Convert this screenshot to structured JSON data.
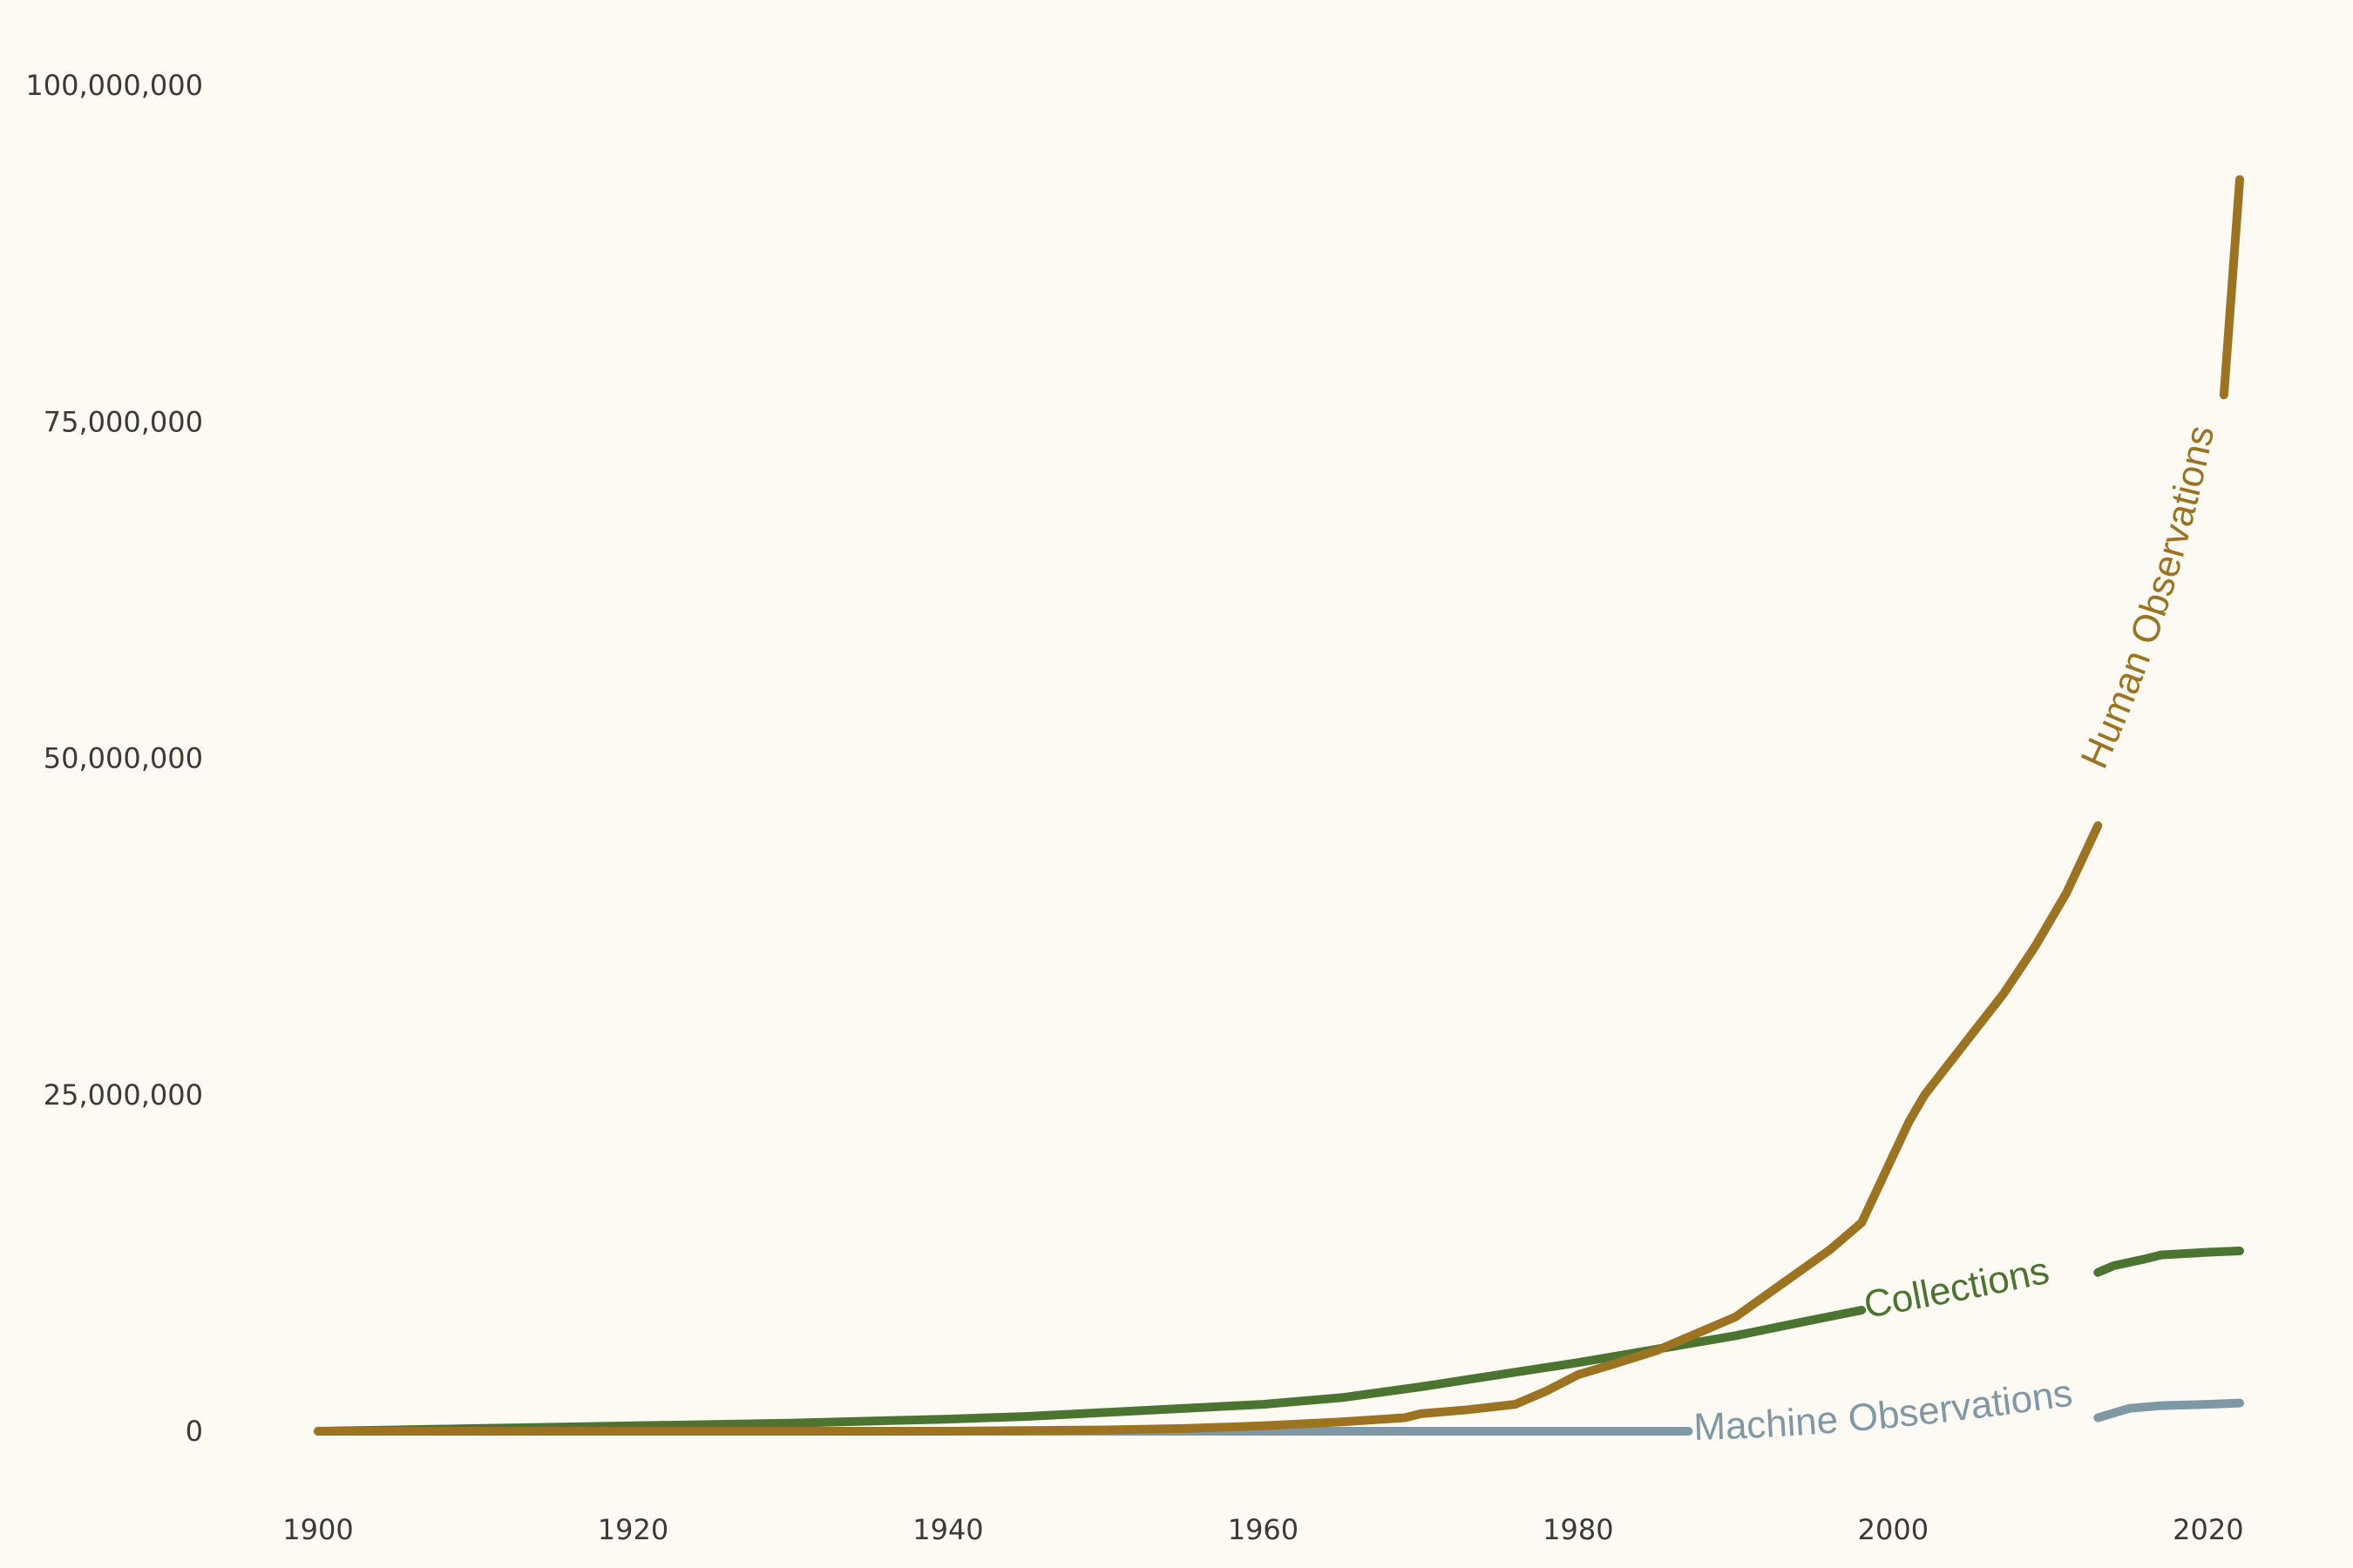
{
  "chart_data": {
    "type": "line",
    "title": "",
    "xlabel": "",
    "ylabel": "",
    "xlim": [
      1900,
      2022
    ],
    "ylim": [
      0,
      100000000
    ],
    "grid": false,
    "legend": "none (direct labels on lines)",
    "x_ticks": [
      1900,
      1920,
      1940,
      1960,
      1980,
      2000,
      2020
    ],
    "x_tick_labels": [
      "1900",
      "1920",
      "1940",
      "1960",
      "1980",
      "2000",
      "2020"
    ],
    "y_ticks": [
      0,
      25000000,
      50000000,
      75000000,
      100000000
    ],
    "y_tick_labels": [
      "0",
      "25,000,000",
      "50,000,000",
      "75,000,000",
      "100,000,000"
    ],
    "series": [
      {
        "name": "Machine Observations",
        "color": "#7f98a6",
        "label_gap": [
          1987,
          2013
        ],
        "x": [
          1905,
          1920,
          1940,
          1960,
          1980,
          1987,
          2013,
          2015,
          2017,
          2020,
          2022
        ],
        "y": [
          0,
          0,
          0,
          0,
          0,
          0,
          1000000,
          1700000,
          1900000,
          2000000,
          2100000
        ]
      },
      {
        "name": "Collections",
        "color": "#4a7430",
        "label_gap": [
          1998,
          2013
        ],
        "x": [
          1900,
          1905,
          1910,
          1920,
          1930,
          1940,
          1945,
          1950,
          1955,
          1960,
          1965,
          1970,
          1975,
          1980,
          1985,
          1990,
          1995,
          1998,
          2013,
          2014,
          2016,
          2017,
          2020,
          2022
        ],
        "y": [
          0,
          100000,
          200000,
          400000,
          600000,
          900000,
          1100000,
          1400000,
          1700000,
          2000000,
          2500000,
          3300000,
          4200000,
          5100000,
          6100000,
          7100000,
          8300000,
          9000000,
          11800000,
          12300000,
          12800000,
          13100000,
          13300000,
          13400000
        ]
      },
      {
        "name": "Human Observations",
        "color": "#9b7321",
        "label_gap": [
          2013,
          2021
        ],
        "x": [
          1900,
          1910,
          1920,
          1930,
          1940,
          1950,
          1955,
          1960,
          1965,
          1969,
          1970,
          1973,
          1976,
          1978,
          1980,
          1982,
          1985,
          1988,
          1990,
          1993,
          1996,
          1998,
          1999,
          2000,
          2001,
          2002,
          2005,
          2007,
          2009,
          2011,
          2012,
          2013,
          2021,
          2022
        ],
        "y": [
          0,
          0,
          0,
          0,
          0,
          100000,
          200000,
          400000,
          700000,
          1000000,
          1300000,
          1600000,
          2000000,
          3000000,
          4200000,
          4900000,
          6000000,
          7500000,
          8500000,
          11000000,
          13500000,
          15500000,
          18000000,
          20500000,
          23000000,
          25000000,
          29500000,
          32500000,
          36000000,
          40000000,
          42500000,
          45000000,
          77000000,
          93000000
        ]
      }
    ]
  }
}
